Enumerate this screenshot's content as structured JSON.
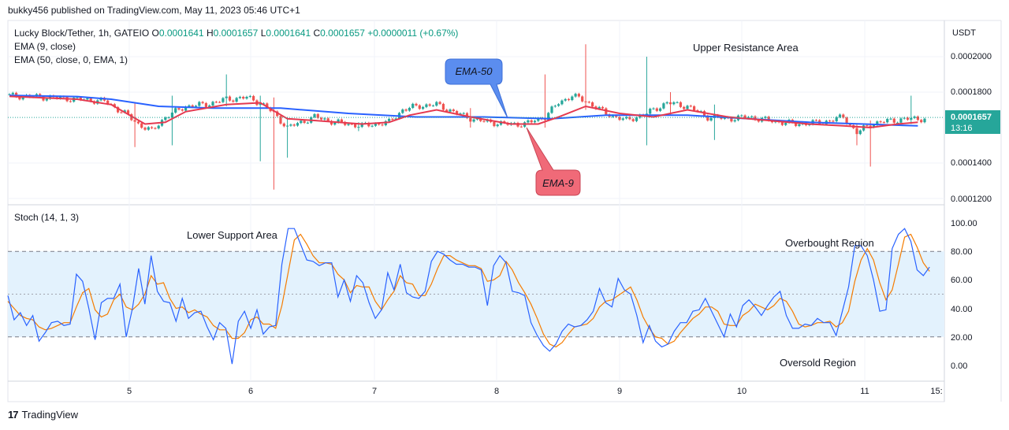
{
  "header": {
    "published": "bukky456 published on TradingView.com, May 11, 2023 05:46 UTC+1"
  },
  "legend": {
    "symbol": "Lucky Block/Tether, 1h, GATEIO",
    "o_label": "O",
    "o_value": "0.0001641",
    "h_label": "H",
    "h_value": "0.0001657",
    "l_label": "L",
    "l_value": "0.0001641",
    "c_label": "C",
    "c_value": "0.0001657",
    "change": "+0.0000011 (+0.67%)",
    "ema9": "EMA (9, close)",
    "ema50": "EMA (50, close, 0, EMA, 1)",
    "stoch": "Stoch (14, 1, 3)"
  },
  "price_axis": {
    "currency": "USDT",
    "ticks": [
      "0.0002000",
      "0.0001800",
      "0.0001400",
      "0.0001200"
    ],
    "last_price": "0.0001657",
    "countdown": "13:16"
  },
  "stoch_axis": {
    "ticks": [
      "100.00",
      "80.00",
      "60.00",
      "40.00",
      "20.00",
      "0.00"
    ]
  },
  "time_axis": {
    "ticks": [
      "5",
      "6",
      "7",
      "8",
      "9",
      "10",
      "11",
      "15:"
    ]
  },
  "annotations": {
    "upper_resistance": "Upper Resistance Area",
    "lower_support": "Lower Support Area",
    "overbought": "Overbought Region",
    "oversold": "Oversold Region",
    "ema50_callout": "EMA-50",
    "ema9_callout": "EMA-9"
  },
  "colors": {
    "up": "#26a69a",
    "down": "#ef5350",
    "ema9": "#e53950",
    "ema50": "#2962ff",
    "stoch_k": "#2962ff",
    "stoch_d": "#f57c00",
    "callout_blue": "#5b8def",
    "callout_red": "#f06a78",
    "band": "#e3f2fd"
  },
  "footer": {
    "brand": "TradingView"
  },
  "chart_data": [
    {
      "type": "candlestick",
      "title": "Lucky Block/Tether, 1h, GATEIO",
      "ylabel": "USDT",
      "ylim": [
        0.000115,
        0.000212
      ],
      "x_labels": [
        "5",
        "6",
        "7",
        "8",
        "9",
        "10",
        "11"
      ],
      "anchors": [
        [
          0,
          0.000178
        ],
        [
          10,
          0.0001772
        ],
        [
          20,
          0.000176
        ],
        [
          28,
          0.000175
        ],
        [
          34,
          0.000168
        ],
        [
          38,
          0.000162
        ],
        [
          42,
          0.000158
        ],
        [
          46,
          0.000166
        ],
        [
          52,
          0.000172
        ],
        [
          58,
          0.000173
        ],
        [
          64,
          0.000176
        ],
        [
          70,
          0.000177
        ],
        [
          74,
          0.000174
        ],
        [
          78,
          0.000168
        ],
        [
          82,
          0.00016
        ],
        [
          86,
          0.000163
        ],
        [
          90,
          0.000166
        ],
        [
          96,
          0.000163
        ],
        [
          104,
          0.000161
        ],
        [
          112,
          0.000163
        ],
        [
          116,
          0.00017
        ],
        [
          120,
          0.000172
        ],
        [
          126,
          0.000173
        ],
        [
          132,
          0.000168
        ],
        [
          138,
          0.000164
        ],
        [
          146,
          0.000162
        ],
        [
          152,
          0.000162
        ],
        [
          158,
          0.000166
        ],
        [
          162,
          0.000174
        ],
        [
          166,
          0.000178
        ],
        [
          170,
          0.000175
        ],
        [
          176,
          0.000168
        ],
        [
          182,
          0.000164
        ],
        [
          188,
          0.000168
        ],
        [
          194,
          0.000174
        ],
        [
          200,
          0.000172
        ],
        [
          206,
          0.000166
        ],
        [
          212,
          0.000165
        ],
        [
          218,
          0.000166
        ],
        [
          224,
          0.000164
        ],
        [
          232,
          0.000162
        ],
        [
          240,
          0.000163
        ],
        [
          246,
          0.000166
        ],
        [
          250,
          0.000157
        ],
        [
          254,
          0.000162
        ],
        [
          260,
          0.000164
        ],
        [
          266,
          0.000165
        ]
      ],
      "spikes": [
        {
          "i": 37,
          "high": 0.000174,
          "low": 0.000149
        },
        {
          "i": 48,
          "high": 0.000178,
          "low": 0.00015
        },
        {
          "i": 64,
          "high": 0.00019,
          "low": 0.000172
        },
        {
          "i": 74,
          "high": 0.000178,
          "low": 0.000141
        },
        {
          "i": 78,
          "high": 0.000177,
          "low": 0.000125
        },
        {
          "i": 82,
          "high": 0.000166,
          "low": 0.000143
        },
        {
          "i": 103,
          "high": 0.000163,
          "low": 0.000158
        },
        {
          "i": 136,
          "high": 0.000171,
          "low": 0.00016
        },
        {
          "i": 158,
          "high": 0.00019,
          "low": 0.00016
        },
        {
          "i": 170,
          "high": 0.000207,
          "low": 0.00017
        },
        {
          "i": 188,
          "high": 0.0002,
          "low": 0.00015
        },
        {
          "i": 195,
          "high": 0.00018,
          "low": 0.000167
        },
        {
          "i": 208,
          "high": 0.000173,
          "low": 0.000153
        },
        {
          "i": 250,
          "high": 0.000162,
          "low": 0.00015
        },
        {
          "i": 254,
          "high": 0.000164,
          "low": 0.000138
        },
        {
          "i": 266,
          "high": 0.000178,
          "low": 0.000162
        }
      ],
      "ema9": [
        [
          0,
          0.0001776
        ],
        [
          20,
          0.000176
        ],
        [
          30,
          0.000173
        ],
        [
          40,
          0.000162
        ],
        [
          46,
          0.000163
        ],
        [
          52,
          0.000169
        ],
        [
          64,
          0.000173
        ],
        [
          74,
          0.000174
        ],
        [
          82,
          0.000165
        ],
        [
          90,
          0.000164
        ],
        [
          104,
          0.000162
        ],
        [
          112,
          0.000163
        ],
        [
          118,
          0.000167
        ],
        [
          126,
          0.00017
        ],
        [
          136,
          0.000166
        ],
        [
          148,
          0.000162
        ],
        [
          156,
          0.000162
        ],
        [
          162,
          0.000166
        ],
        [
          170,
          0.000172
        ],
        [
          180,
          0.000168
        ],
        [
          190,
          0.000166
        ],
        [
          200,
          0.00017
        ],
        [
          212,
          0.000166
        ],
        [
          224,
          0.000164
        ],
        [
          236,
          0.000162
        ],
        [
          246,
          0.000161
        ],
        [
          254,
          0.00016
        ],
        [
          262,
          0.000162
        ],
        [
          268,
          0.000163
        ]
      ],
      "ema50": [
        [
          0,
          0.0001782
        ],
        [
          20,
          0.0001775
        ],
        [
          30,
          0.000176
        ],
        [
          44,
          0.000172
        ],
        [
          60,
          0.000171
        ],
        [
          80,
          0.000171
        ],
        [
          100,
          0.000168
        ],
        [
          120,
          0.000166
        ],
        [
          140,
          0.000166
        ],
        [
          160,
          0.000165
        ],
        [
          176,
          0.000167
        ],
        [
          200,
          0.000167
        ],
        [
          218,
          0.000165
        ],
        [
          236,
          0.000163
        ],
        [
          252,
          0.000162
        ],
        [
          268,
          0.000161
        ]
      ],
      "last_price": 0.0001657
    },
    {
      "type": "line",
      "title": "Stoch (14, 1, 3)",
      "ylim": [
        -8,
        108
      ],
      "levels": {
        "upper": 80,
        "middle": 50,
        "lower": 20
      },
      "series": [
        {
          "name": "%K",
          "values": [
            49,
            32,
            37,
            28,
            35,
            17,
            23,
            30,
            31,
            28,
            29,
            64,
            59,
            40,
            18,
            44,
            47,
            47,
            57,
            20,
            40,
            68,
            43,
            77,
            52,
            45,
            44,
            31,
            47,
            33,
            37,
            38,
            27,
            18,
            30,
            26,
            1,
            31,
            38,
            26,
            39,
            22,
            27,
            28,
            71,
            96,
            96,
            85,
            74,
            73,
            70,
            72,
            72,
            48,
            60,
            45,
            63,
            58,
            44,
            33,
            39,
            65,
            53,
            71,
            51,
            48,
            47,
            52,
            73,
            80,
            78,
            74,
            71,
            71,
            69,
            69,
            67,
            42,
            70,
            77,
            72,
            52,
            51,
            49,
            30,
            21,
            14,
            10,
            15,
            24,
            29,
            27,
            28,
            32,
            38,
            54,
            44,
            41,
            61,
            53,
            50,
            35,
            16,
            28,
            17,
            13,
            15,
            24,
            30,
            30,
            38,
            39,
            47,
            38,
            29,
            20,
            36,
            27,
            42,
            46,
            41,
            35,
            42,
            48,
            52,
            35,
            26,
            26,
            29,
            28,
            33,
            30,
            30,
            21,
            38,
            55,
            84,
            84,
            77,
            60,
            38,
            39,
            82,
            92,
            96,
            87,
            67,
            63,
            69
          ]
        },
        {
          "name": "%D",
          "values": [
            45,
            40,
            35,
            33,
            32,
            27,
            25,
            26,
            28,
            30,
            30,
            41,
            51,
            54,
            39,
            34,
            36,
            46,
            50,
            41,
            39,
            43,
            50,
            63,
            57,
            58,
            47,
            40,
            41,
            37,
            39,
            36,
            34,
            28,
            25,
            25,
            19,
            19,
            23,
            32,
            34,
            29,
            29,
            26,
            42,
            65,
            88,
            92,
            85,
            77,
            72,
            72,
            71,
            64,
            60,
            51,
            56,
            55,
            55,
            45,
            39,
            46,
            52,
            63,
            58,
            57,
            49,
            49,
            57,
            68,
            77,
            77,
            74,
            72,
            70,
            70,
            68,
            59,
            60,
            63,
            73,
            67,
            58,
            51,
            43,
            33,
            22,
            15,
            13,
            16,
            22,
            27,
            28,
            29,
            33,
            41,
            45,
            46,
            49,
            52,
            55,
            46,
            34,
            26,
            20,
            19,
            15,
            17,
            23,
            28,
            33,
            36,
            41,
            41,
            38,
            29,
            28,
            28,
            35,
            38,
            43,
            41,
            39,
            42,
            47,
            45,
            38,
            29,
            27,
            28,
            30,
            30,
            31,
            27,
            30,
            38,
            59,
            74,
            82,
            74,
            58,
            46,
            53,
            71,
            90,
            92,
            83,
            72,
            66
          ]
        }
      ]
    }
  ]
}
